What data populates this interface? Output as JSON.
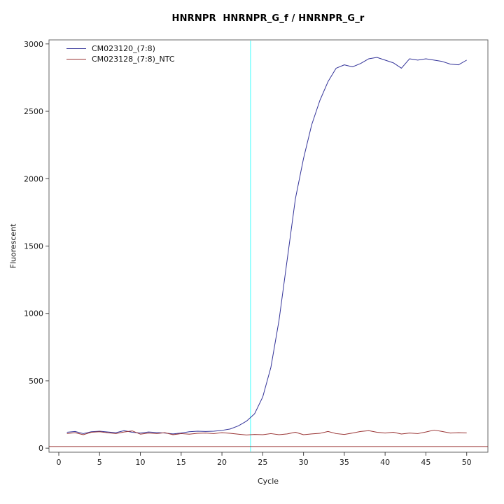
{
  "chart_data": {
    "type": "line",
    "title": "HNRNPR  HNRNPR_G_f / HNRNPR_G_r",
    "xlabel": "Cycle",
    "ylabel": "Fluorescent",
    "xlim": [
      0,
      50
    ],
    "ylim": [
      0,
      3000
    ],
    "x_ticks": [
      0,
      5,
      10,
      15,
      20,
      25,
      30,
      35,
      40,
      45,
      50
    ],
    "y_ticks": [
      0,
      500,
      1000,
      1500,
      2000,
      2500,
      3000
    ],
    "grid": false,
    "legend_position": "top-left",
    "threshold_line": {
      "x": 23.5,
      "color": "#80ffff"
    },
    "zero_line": {
      "y": 12,
      "color": "#993333"
    },
    "x": [
      1,
      2,
      3,
      4,
      5,
      6,
      7,
      8,
      9,
      10,
      11,
      12,
      13,
      14,
      15,
      16,
      17,
      18,
      19,
      20,
      21,
      22,
      23,
      24,
      25,
      26,
      27,
      28,
      29,
      30,
      31,
      32,
      33,
      34,
      35,
      36,
      37,
      38,
      39,
      40,
      41,
      42,
      43,
      44,
      45,
      46,
      47,
      48,
      49,
      50
    ],
    "series": [
      {
        "name": "CM023120_(7:8)",
        "color": "#333399",
        "values": [
          118,
          124,
          108,
          122,
          126,
          120,
          115,
          130,
          118,
          112,
          120,
          116,
          112,
          106,
          112,
          122,
          126,
          124,
          126,
          132,
          142,
          165,
          200,
          255,
          380,
          600,
          950,
          1400,
          1850,
          2150,
          2400,
          2580,
          2720,
          2820,
          2845,
          2830,
          2855,
          2890,
          2900,
          2880,
          2860,
          2820,
          2890,
          2880,
          2890,
          2880,
          2870,
          2850,
          2845,
          2880
        ]
      },
      {
        "name": "CM023128_(7:8)_NTC",
        "color": "#993333",
        "values": [
          108,
          115,
          100,
          118,
          122,
          114,
          108,
          120,
          128,
          104,
          112,
          108,
          115,
          100,
          108,
          104,
          110,
          112,
          108,
          115,
          110,
          104,
          98,
          102,
          100,
          108,
          100,
          106,
          118,
          100,
          106,
          110,
          124,
          108,
          102,
          112,
          124,
          130,
          118,
          112,
          118,
          105,
          112,
          108,
          120,
          134,
          124,
          112,
          115,
          113
        ]
      }
    ]
  }
}
